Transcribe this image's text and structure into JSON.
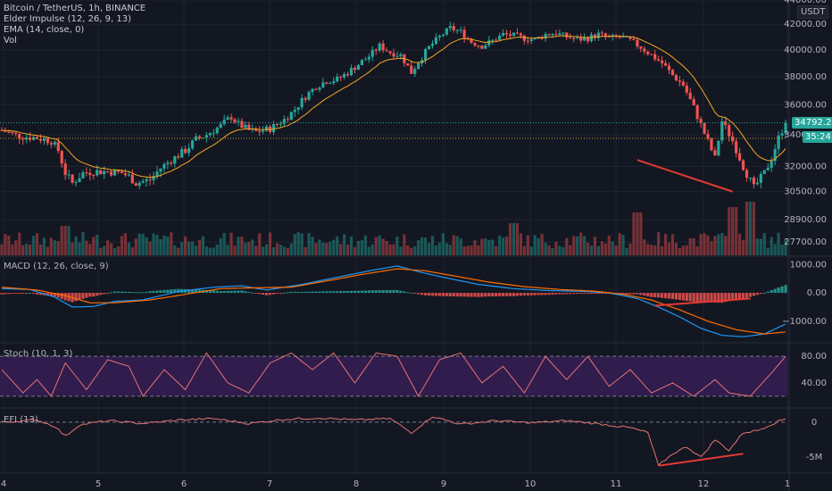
{
  "legend": {
    "symbol": "Bitcoin / TetherUS, 1h, BINANCE",
    "elder": "Elder Impulse (12, 26, 9, 13)",
    "ema": "EMA (14, close, 0)",
    "vol": "Vol"
  },
  "currency_tag": "USDT",
  "price_tag": "34792.20",
  "timer_tag": "35:24",
  "pane_labels": {
    "macd": "MACD (12, 26, close, 9)",
    "stoch": "Stoch (10, 1, 3)",
    "efi": "EFI (13)"
  },
  "colors": {
    "background": "#131722",
    "up": "#26a69a",
    "down": "#ef5350",
    "ema": "#f5a623",
    "macd_line": "#2196f3",
    "signal_line": "#ff6d00",
    "stoch": "#e57373",
    "stoch_band": "#3b1f5c",
    "efi": "#e57373",
    "divergence": "#e53935",
    "last_price": "#26a69a"
  },
  "chart_data": [
    {
      "type": "candlestick",
      "title": "Bitcoin / TetherUS, 1h, BINANCE",
      "x_ticks": [
        "4",
        "5",
        "6",
        "7",
        "8",
        "9",
        "10",
        "11",
        "12",
        "1"
      ],
      "y_ticks": [
        "44000.00",
        "42000.00",
        "40000.00",
        "38000.00",
        "36000.00",
        "34000.00",
        "32000.00",
        "30500.00",
        "28900.00",
        "27700.00"
      ],
      "y_scale": "log",
      "ylim": [
        27000,
        44000
      ],
      "last_price": 34792.2,
      "ema_period": 14,
      "price_path": [
        [
          0,
          34300
        ],
        [
          5,
          33900
        ],
        [
          10,
          33800
        ],
        [
          14,
          33600
        ],
        [
          16,
          33000
        ],
        [
          18,
          31600
        ],
        [
          20,
          31000
        ],
        [
          23,
          31600
        ],
        [
          26,
          31700
        ],
        [
          30,
          31700
        ],
        [
          34,
          31600
        ],
        [
          36,
          31400
        ],
        [
          38,
          31000
        ],
        [
          42,
          31200
        ],
        [
          45,
          31900
        ],
        [
          48,
          32400
        ],
        [
          52,
          33000
        ],
        [
          55,
          33700
        ],
        [
          58,
          34000
        ],
        [
          62,
          34600
        ],
        [
          65,
          35200
        ],
        [
          67,
          34700
        ],
        [
          70,
          34300
        ],
        [
          72,
          34200
        ],
        [
          76,
          34400
        ],
        [
          80,
          35000
        ],
        [
          83,
          35700
        ],
        [
          86,
          36600
        ],
        [
          89,
          37300
        ],
        [
          92,
          37700
        ],
        [
          95,
          37800
        ],
        [
          98,
          38300
        ],
        [
          101,
          38900
        ],
        [
          104,
          39500
        ],
        [
          107,
          40300
        ],
        [
          110,
          39800
        ],
        [
          113,
          39600
        ],
        [
          116,
          38300
        ],
        [
          118,
          39100
        ],
        [
          121,
          40200
        ],
        [
          124,
          41000
        ],
        [
          127,
          41700
        ],
        [
          130,
          41400
        ],
        [
          133,
          40600
        ],
        [
          136,
          40300
        ],
        [
          139,
          40700
        ],
        [
          142,
          41200
        ],
        [
          145,
          41100
        ],
        [
          148,
          40900
        ],
        [
          151,
          40800
        ],
        [
          154,
          41200
        ],
        [
          157,
          41300
        ],
        [
          160,
          41000
        ],
        [
          163,
          40800
        ],
        [
          166,
          40900
        ],
        [
          169,
          41200
        ],
        [
          172,
          40900
        ],
        [
          175,
          41000
        ],
        [
          178,
          40700
        ],
        [
          181,
          40200
        ],
        [
          184,
          39600
        ],
        [
          187,
          39000
        ],
        [
          190,
          38100
        ],
        [
          193,
          37400
        ],
        [
          196,
          35800
        ],
        [
          199,
          34100
        ],
        [
          202,
          32500
        ],
        [
          204,
          34900
        ],
        [
          207,
          33600
        ],
        [
          210,
          32000
        ],
        [
          213,
          30700
        ],
        [
          216,
          31600
        ],
        [
          218,
          32500
        ],
        [
          220,
          33800
        ],
        [
          222,
          34792
        ]
      ],
      "annotations": [
        {
          "type": "divergence_line",
          "from": [
            180,
            32400
          ],
          "to": [
            207,
            30500
          ]
        }
      ],
      "volume": {
        "label": "Vol",
        "spikes": [
          [
            18,
            0.55
          ],
          [
            145,
            0.6
          ],
          [
            180,
            0.8
          ],
          [
            207,
            0.9
          ],
          [
            212,
            1.0
          ]
        ]
      }
    },
    {
      "type": "line",
      "title": "MACD (12, 26, close, 9)",
      "y_ticks": [
        "1000.00",
        "0.00",
        "−1000.00"
      ],
      "ylim": [
        -1700,
        1200
      ],
      "series": [
        {
          "values": [
            [
              0,
              150
            ],
            [
              8,
              120
            ],
            [
              15,
              -150
            ],
            [
              20,
              -500
            ],
            [
              26,
              -480
            ],
            [
              32,
              -300
            ],
            [
              40,
              -250
            ],
            [
              50,
              50
            ],
            [
              60,
              200
            ],
            [
              68,
              250
            ],
            [
              75,
              100
            ],
            [
              85,
              300
            ],
            [
              95,
              550
            ],
            [
              105,
              800
            ],
            [
              112,
              950
            ],
            [
              118,
              750
            ],
            [
              125,
              550
            ],
            [
              135,
              300
            ],
            [
              145,
              150
            ],
            [
              155,
              80
            ],
            [
              165,
              50
            ],
            [
              172,
              0
            ],
            [
              180,
              -200
            ],
            [
              186,
              -500
            ],
            [
              192,
              -850
            ],
            [
              198,
              -1250
            ],
            [
              204,
              -1500
            ],
            [
              210,
              -1550
            ],
            [
              216,
              -1450
            ],
            [
              222,
              -1100
            ]
          ]
        },
        {
          "values": [
            [
              0,
              200
            ],
            [
              10,
              100
            ],
            [
              18,
              -100
            ],
            [
              25,
              -350
            ],
            [
              32,
              -350
            ],
            [
              42,
              -250
            ],
            [
              52,
              -50
            ],
            [
              62,
              150
            ],
            [
              72,
              180
            ],
            [
              82,
              200
            ],
            [
              92,
              420
            ],
            [
              102,
              650
            ],
            [
              112,
              850
            ],
            [
              120,
              780
            ],
            [
              128,
              600
            ],
            [
              138,
              380
            ],
            [
              148,
              220
            ],
            [
              158,
              120
            ],
            [
              168,
              60
            ],
            [
              176,
              -50
            ],
            [
              184,
              -250
            ],
            [
              192,
              -600
            ],
            [
              200,
              -1000
            ],
            [
              208,
              -1300
            ],
            [
              216,
              -1450
            ],
            [
              222,
              -1380
            ]
          ]
        }
      ],
      "histogram_zero_cross_hint": "histogram bars above zero around x 50-110 and at the far right",
      "annotations": [
        {
          "type": "divergence_line",
          "from": [
            185,
            -450
          ],
          "to": [
            212,
            -200
          ]
        }
      ]
    },
    {
      "type": "line",
      "title": "Stoch (10, 1, 3)",
      "y_ticks": [
        "80.00",
        "40.00"
      ],
      "ylim": [
        5,
        95
      ],
      "bands": [
        20,
        80
      ],
      "series": [
        {
          "values": [
            [
              0,
              60
            ],
            [
              6,
              25
            ],
            [
              10,
              45
            ],
            [
              14,
              20
            ],
            [
              18,
              70
            ],
            [
              24,
              30
            ],
            [
              30,
              75
            ],
            [
              36,
              65
            ],
            [
              40,
              20
            ],
            [
              46,
              60
            ],
            [
              52,
              30
            ],
            [
              58,
              85
            ],
            [
              64,
              40
            ],
            [
              70,
              25
            ],
            [
              76,
              70
            ],
            [
              82,
              85
            ],
            [
              88,
              60
            ],
            [
              94,
              85
            ],
            [
              100,
              40
            ],
            [
              106,
              85
            ],
            [
              112,
              80
            ],
            [
              118,
              20
            ],
            [
              124,
              75
            ],
            [
              130,
              85
            ],
            [
              136,
              40
            ],
            [
              142,
              65
            ],
            [
              148,
              25
            ],
            [
              154,
              80
            ],
            [
              160,
              45
            ],
            [
              166,
              80
            ],
            [
              172,
              35
            ],
            [
              178,
              60
            ],
            [
              184,
              25
            ],
            [
              190,
              40
            ],
            [
              196,
              20
            ],
            [
              202,
              45
            ],
            [
              206,
              25
            ],
            [
              212,
              20
            ],
            [
              218,
              55
            ],
            [
              222,
              80
            ]
          ]
        }
      ]
    },
    {
      "type": "line",
      "title": "EFI (13)",
      "y_ticks": [
        "0",
        "-5M"
      ],
      "ylim": [
        -7000000,
        1500000
      ],
      "series": [
        {
          "values": [
            [
              0,
              0
            ],
            [
              10,
              300000
            ],
            [
              15,
              -600000
            ],
            [
              18,
              -2000000
            ],
            [
              22,
              -400000
            ],
            [
              30,
              200000
            ],
            [
              40,
              -200000
            ],
            [
              50,
              300000
            ],
            [
              60,
              500000
            ],
            [
              70,
              -200000
            ],
            [
              80,
              400000
            ],
            [
              90,
              600000
            ],
            [
              100,
              300000
            ],
            [
              110,
              500000
            ],
            [
              116,
              -1500000
            ],
            [
              122,
              800000
            ],
            [
              130,
              -300000
            ],
            [
              140,
              200000
            ],
            [
              150,
              -100000
            ],
            [
              160,
              200000
            ],
            [
              170,
              -300000
            ],
            [
              178,
              -800000
            ],
            [
              183,
              -1500000
            ],
            [
              186,
              -6200000
            ],
            [
              190,
              -4500000
            ],
            [
              194,
              -3500000
            ],
            [
              198,
              -5000000
            ],
            [
              202,
              -2500000
            ],
            [
              206,
              -4000000
            ],
            [
              210,
              -1500000
            ],
            [
              214,
              -1200000
            ],
            [
              218,
              -300000
            ],
            [
              222,
              500000
            ]
          ]
        }
      ],
      "annotations": [
        {
          "type": "divergence_line",
          "from": [
            186,
            -6200000
          ],
          "to": [
            210,
            -4500000
          ]
        }
      ]
    }
  ]
}
